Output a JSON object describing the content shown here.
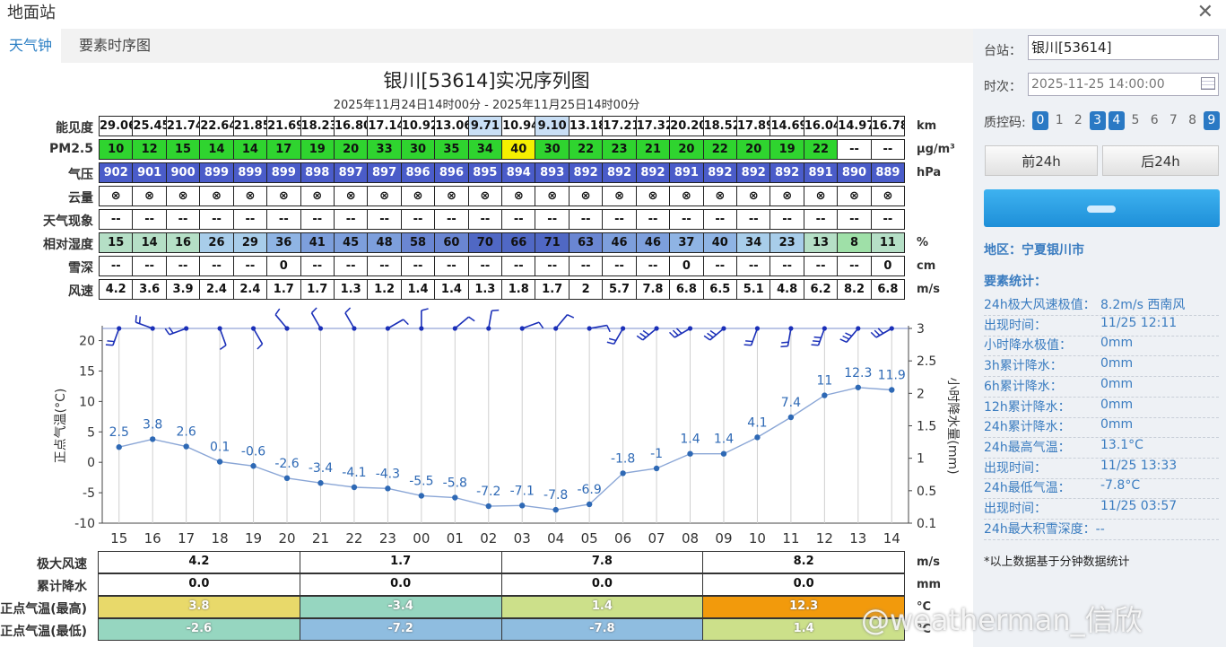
{
  "window": {
    "title": "地面站"
  },
  "tabs": [
    {
      "label": "天气钟"
    },
    {
      "label": "要素时序图"
    }
  ],
  "chart_title": "银川[53614]实况序列图",
  "chart_subtitle": "2025年11月24日14时00分 - 2025年11月25日14时00分",
  "hours": [
    "15",
    "16",
    "17",
    "18",
    "19",
    "20",
    "21",
    "22",
    "23",
    "00",
    "01",
    "02",
    "03",
    "04",
    "05",
    "06",
    "07",
    "08",
    "09",
    "10",
    "11",
    "12",
    "13",
    "14"
  ],
  "rows": [
    {
      "label": "能见度",
      "unit": "km",
      "values": [
        "29.06",
        "25.45",
        "21.74",
        "22.64",
        "21.85",
        "21.69",
        "18.23",
        "16.80",
        "17.14",
        "10.92",
        "13.06",
        "9.71",
        "10.94",
        "9.10",
        "13.18",
        "17.21",
        "17.32",
        "20.20",
        "18.52",
        "17.89",
        "14.69",
        "16.04",
        "14.97",
        "16.78"
      ],
      "colors": [
        "#fff",
        "#fff",
        "#fff",
        "#fff",
        "#fff",
        "#fff",
        "#fff",
        "#fff",
        "#fff",
        "#fff",
        "#fff",
        "#c9dff5",
        "#fff",
        "#c9dff5",
        "#fff",
        "#fff",
        "#fff",
        "#fff",
        "#fff",
        "#fff",
        "#fff",
        "#fff",
        "#fff",
        "#fff"
      ]
    },
    {
      "label": "PM2.5",
      "unit": "μg/m³",
      "values": [
        "10",
        "12",
        "15",
        "14",
        "14",
        "17",
        "19",
        "20",
        "33",
        "30",
        "35",
        "34",
        "40",
        "30",
        "22",
        "23",
        "21",
        "20",
        "22",
        "20",
        "19",
        "22",
        "--",
        "--"
      ],
      "colors": [
        "#2fd42f",
        "#2fd42f",
        "#2fd42f",
        "#2fd42f",
        "#2fd42f",
        "#2fd42f",
        "#2fd42f",
        "#2fd42f",
        "#2fd42f",
        "#2fd42f",
        "#2fd42f",
        "#2fd42f",
        "#f5f000",
        "#2fd42f",
        "#2fd42f",
        "#2fd42f",
        "#2fd42f",
        "#2fd42f",
        "#2fd42f",
        "#2fd42f",
        "#2fd42f",
        "#2fd42f",
        "#fff",
        "#fff"
      ]
    },
    {
      "label": "气压",
      "unit": "hPa",
      "values": [
        "902",
        "901",
        "900",
        "899",
        "899",
        "899",
        "898",
        "897",
        "897",
        "896",
        "896",
        "895",
        "894",
        "893",
        "892",
        "892",
        "892",
        "891",
        "892",
        "892",
        "892",
        "891",
        "890",
        "889"
      ],
      "colors": [
        "#4a5cc9"
      ],
      "text_color": "#fff"
    },
    {
      "label": "云量",
      "unit": "",
      "values": [
        "⊗",
        "⊗",
        "⊗",
        "⊗",
        "⊗",
        "⊗",
        "⊗",
        "⊗",
        "⊗",
        "⊗",
        "⊗",
        "⊗",
        "⊗",
        "⊗",
        "⊗",
        "⊗",
        "⊗",
        "⊗",
        "⊗",
        "⊗",
        "⊗",
        "⊗",
        "⊗",
        "⊗"
      ],
      "colors": [
        "#fff"
      ]
    },
    {
      "label": "天气现象",
      "unit": "",
      "values": [
        "--",
        "--",
        "--",
        "--",
        "--",
        "--",
        "--",
        "--",
        "--",
        "--",
        "--",
        "--",
        "--",
        "--",
        "--",
        "--",
        "--",
        "--",
        "--",
        "--",
        "--",
        "--",
        "--",
        "--"
      ],
      "colors": [
        "#fff"
      ]
    },
    {
      "label": "相对湿度",
      "unit": "%",
      "values": [
        "15",
        "14",
        "16",
        "26",
        "29",
        "36",
        "41",
        "45",
        "48",
        "58",
        "60",
        "70",
        "66",
        "71",
        "63",
        "46",
        "46",
        "37",
        "40",
        "34",
        "23",
        "13",
        "8",
        "11"
      ],
      "colors": [
        "#b5dfc6",
        "#b5dfc6",
        "#b5dfc6",
        "#a8cdea",
        "#a8cdea",
        "#8fb4e4",
        "#7d9fdc",
        "#7d9fdc",
        "#7d9fdc",
        "#6a86d2",
        "#6a86d2",
        "#5068c4",
        "#5068c4",
        "#5068c4",
        "#6a86d2",
        "#7d9fdc",
        "#7d9fdc",
        "#8fb4e4",
        "#8fb4e4",
        "#a8cdea",
        "#a8cdea",
        "#b5dfc6",
        "#9fe0a8",
        "#b5dfc6"
      ]
    },
    {
      "label": "雪深",
      "unit": "cm",
      "values": [
        "--",
        "--",
        "--",
        "--",
        "--",
        "0",
        "--",
        "--",
        "--",
        "--",
        "--",
        "--",
        "--",
        "--",
        "--",
        "--",
        "--",
        "0",
        "--",
        "--",
        "--",
        "--",
        "--",
        "0"
      ],
      "colors": [
        "#fff"
      ]
    },
    {
      "label": "风速",
      "unit": "m/s",
      "values": [
        "4.2",
        "3.6",
        "3.9",
        "2.4",
        "2.4",
        "1.7",
        "1.7",
        "1.3",
        "1.2",
        "1.4",
        "1.4",
        "1.3",
        "1.8",
        "1.7",
        "2",
        "5.7",
        "7.8",
        "6.8",
        "6.5",
        "5.1",
        "4.8",
        "6.2",
        "8.2",
        "6.8"
      ],
      "colors": [
        "#fff"
      ]
    }
  ],
  "chart_data": {
    "type": "line",
    "x": [
      "15",
      "16",
      "17",
      "18",
      "19",
      "20",
      "21",
      "22",
      "23",
      "00",
      "01",
      "02",
      "03",
      "04",
      "05",
      "06",
      "07",
      "08",
      "09",
      "10",
      "11",
      "12",
      "13",
      "14"
    ],
    "series": [
      {
        "name": "正点气温(°C)",
        "values": [
          2.5,
          3.8,
          2.6,
          0.1,
          -0.6,
          -2.6,
          -3.4,
          -4.1,
          -4.3,
          -5.5,
          -5.8,
          -7.2,
          -7.1,
          -7.8,
          -6.9,
          -1.8,
          -1,
          1.4,
          1.4,
          4.1,
          7.4,
          11,
          12.3,
          11.9
        ]
      }
    ],
    "wind_dir_deg": [
      200,
      290,
      250,
      160,
      150,
      320,
      330,
      330,
      60,
      0,
      50,
      10,
      70,
      40,
      80,
      210,
      230,
      240,
      230,
      200,
      190,
      200,
      220,
      240
    ],
    "ylabel_left": "正点气温(°C)",
    "ylabel_right": "小时降水量(mm)",
    "yticks_left": [
      "20",
      "15",
      "10",
      "5",
      "0",
      "-5",
      "-10"
    ],
    "yticks_right": [
      "3",
      "2.5",
      "2",
      "1.5",
      "1",
      "0.5",
      "0.1"
    ],
    "ylim": [
      -10,
      22
    ],
    "line_color": "#2e69b5"
  },
  "bottom": {
    "rows": [
      {
        "label": "极大风速",
        "unit": "m/s",
        "values": [
          "4.2",
          "1.7",
          "7.8",
          "8.2"
        ],
        "colors": [
          "#fff",
          "#fff",
          "#fff",
          "#fff"
        ]
      },
      {
        "label": "累计降水",
        "unit": "mm",
        "values": [
          "0.0",
          "0.0",
          "0.0",
          "0.0"
        ],
        "colors": [
          "#fff",
          "#fff",
          "#fff",
          "#fff"
        ]
      },
      {
        "label": "正点气温(最高)",
        "unit": "°C",
        "values": [
          "3.8",
          "-3.4",
          "1.4",
          "12.3"
        ],
        "colors": [
          "#e8d96a",
          "#96d6c0",
          "#cce08a",
          "#f29a0c"
        ]
      },
      {
        "label": "正点气温(最低)",
        "unit": "°C",
        "values": [
          "-2.6",
          "-7.2",
          "-7.8",
          "1.4"
        ],
        "colors": [
          "#96d6c0",
          "#8fbde0",
          "#8fbde0",
          "#cce08a"
        ]
      }
    ]
  },
  "side": {
    "station_label": "台站：",
    "station_value": "银川[53614]",
    "time_label": "时次：",
    "time_value": "2025-11-25 14:00:00",
    "qc_label": "质控码:",
    "qc_codes": [
      "0",
      "1",
      "2",
      "3",
      "4",
      "5",
      "6",
      "7",
      "8",
      "9"
    ],
    "qc_active": [
      true,
      false,
      false,
      true,
      true,
      false,
      false,
      false,
      false,
      true
    ],
    "prev_label": "前24h",
    "next_label": "后24h",
    "region": "地区：宁夏银川市",
    "stats_title": "要素统计：",
    "stats": [
      {
        "k": "24h极大风速极值：",
        "v": "8.2m/s 西南风"
      },
      {
        "k": "出现时间：",
        "v": "11/25 12:11"
      },
      {
        "k": "小时降水极值：",
        "v": "0mm"
      },
      {
        "k": "3h累计降水：",
        "v": "0mm"
      },
      {
        "k": "6h累计降水：",
        "v": "0mm"
      },
      {
        "k": "12h累计降水：",
        "v": "0mm"
      },
      {
        "k": "24h累计降水：",
        "v": "0mm"
      },
      {
        "k": "24h最高气温：",
        "v": "13.1°C"
      },
      {
        "k": "出现时间：",
        "v": "11/25 13:33"
      },
      {
        "k": "24h最低气温：",
        "v": "-7.8°C"
      },
      {
        "k": "出现时间：",
        "v": "11/25 03:57"
      },
      {
        "k": "24h最大积雪深度：--",
        "v": ""
      }
    ],
    "note": "*以上数据基于分钟数据统计"
  },
  "watermark": "@weatherman_信欣"
}
